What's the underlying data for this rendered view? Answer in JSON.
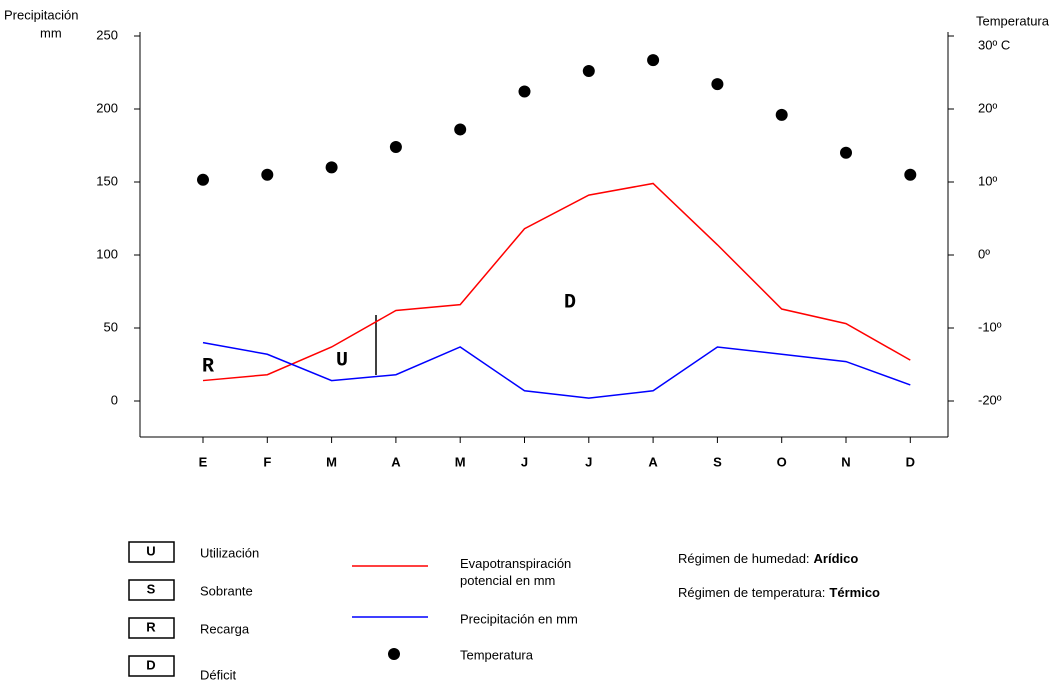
{
  "chart_data": {
    "type": "line",
    "y_label": "Precipitación",
    "y_unit": "mm",
    "y2_label": "Temperatura",
    "categories": [
      "E",
      "F",
      "M",
      "A",
      "M",
      "J",
      "J",
      "A",
      "S",
      "O",
      "N",
      "D"
    ],
    "series": [
      {
        "name": "Evapotranspiración potencial en mm",
        "color": "#ff0000",
        "values": [
          14,
          18,
          37,
          62,
          66,
          118,
          141,
          149,
          107,
          63,
          53,
          28
        ]
      },
      {
        "name": "Precipitación en mm",
        "color": "#0000ff",
        "values": [
          40,
          32,
          14,
          18,
          37,
          7,
          2,
          7,
          37,
          32,
          27,
          11
        ]
      },
      {
        "name": "Temperatura",
        "type": "scatter",
        "axis": "y2",
        "color": "#000000",
        "values": [
          10.3,
          11,
          12,
          14.8,
          17.2,
          22.4,
          25.2,
          26.7,
          23.4,
          19.2,
          14,
          11
        ]
      }
    ],
    "ylim": [
      -25,
      250
    ],
    "yticks": [
      0,
      50,
      100,
      150,
      200,
      250
    ],
    "y2lim": [
      -25,
      30
    ],
    "y2ticks": [
      {
        "value": -20,
        "label": "-20º"
      },
      {
        "value": -10,
        "label": "-10º"
      },
      {
        "value": 0,
        "label": "0º"
      },
      {
        "value": 10,
        "label": "10º"
      },
      {
        "value": 20,
        "label": "20º"
      },
      {
        "value": 30,
        "label": "30º C"
      }
    ],
    "annotations": [
      "R",
      "U",
      "D"
    ],
    "codes": [
      {
        "code": "U",
        "label": "Utilización"
      },
      {
        "code": "S",
        "label": "Sobrante"
      },
      {
        "code": "R",
        "label": "Recarga"
      },
      {
        "code": "D",
        "label": "Déficit"
      }
    ],
    "regimes": [
      {
        "label": "Régimen de humedad:",
        "value": "Arídico"
      },
      {
        "label": "Régimen de temperatura:",
        "value": "Térmico"
      }
    ]
  }
}
